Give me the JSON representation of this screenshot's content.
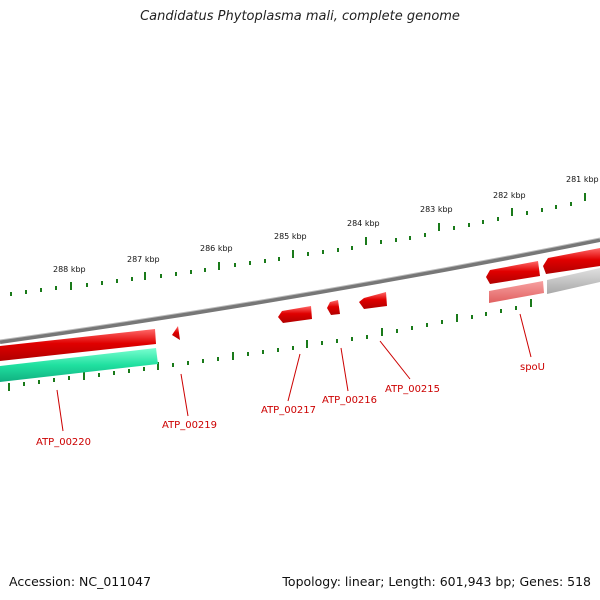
{
  "title": "Candidatus Phytoplasma mali, complete genome",
  "footer": {
    "accession": "Accession: NC_011047",
    "summary": "Topology: linear; Length: 601,943 bp; Genes: 518"
  },
  "colors": {
    "backbone": "#888888",
    "gene_red": "#e00000",
    "gene_red_light": "#f07070",
    "gene_teal": "#20e0a0",
    "gene_gray": "#b8b8b8",
    "tick_green": "#1a7a1a",
    "label_red": "#cc0000"
  },
  "kbp_labels": [
    "288 kbp",
    "287 kbp",
    "286 kbp",
    "285 kbp",
    "284 kbp",
    "283 kbp",
    "282 kbp",
    "281 kbp"
  ],
  "gene_labels": [
    "ATP_00220",
    "ATP_00219",
    "ATP_00217",
    "ATP_00216",
    "ATP_00215",
    "spoU"
  ]
}
